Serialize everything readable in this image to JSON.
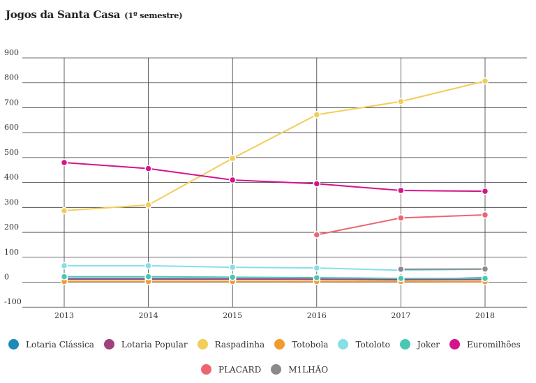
{
  "header": {
    "title": "Jogos da Santa Casa",
    "subtitle": "(1º semestre)"
  },
  "chart_data": {
    "type": "line",
    "title": "Jogos da Santa Casa",
    "subtitle": "(1º semestre)",
    "xlabel": "",
    "ylabel": "",
    "x": [
      "2013",
      "2014",
      "2015",
      "2016",
      "2017",
      "2018"
    ],
    "yticks": [
      "900",
      "800",
      "700",
      "600",
      "500",
      "400",
      "300",
      "200",
      "100",
      "0",
      "-100"
    ],
    "ylim": [
      -100,
      900
    ],
    "grid": true,
    "legend_position": "bottom",
    "series": [
      {
        "name": "Lotaria Clássica",
        "color": "#1a8bb5",
        "values": [
          12,
          12,
          12,
          12,
          10,
          18
        ]
      },
      {
        "name": "Lotaria Popular",
        "color": "#a0407c",
        "values": [
          14,
          14,
          13,
          12,
          10,
          10
        ]
      },
      {
        "name": "Raspadinha",
        "color": "#f2cd58",
        "values": [
          287,
          310,
          497,
          672,
          725,
          807
        ]
      },
      {
        "name": "Totobola",
        "color": "#f39a2a",
        "values": [
          3,
          3,
          3,
          3,
          3,
          2
        ]
      },
      {
        "name": "Totoloto",
        "color": "#86dfe6",
        "values": [
          66,
          66,
          60,
          57,
          48,
          52
        ]
      },
      {
        "name": "Joker",
        "color": "#48c7b5",
        "values": [
          22,
          22,
          20,
          18,
          15,
          15
        ]
      },
      {
        "name": "Euromilhões",
        "color": "#d4148d",
        "values": [
          480,
          456,
          410,
          395,
          368,
          365
        ]
      },
      {
        "name": "PLACARD",
        "color": "#ec6570",
        "values": [
          null,
          null,
          null,
          190,
          258,
          270
        ]
      },
      {
        "name": "M1LHÃO",
        "color": "#8a8a8a",
        "values": [
          null,
          null,
          null,
          null,
          52,
          53
        ]
      }
    ]
  },
  "legend": {
    "row1": [
      "Lotaria Clássica",
      "Lotaria Popular",
      "Raspadinha",
      "Totobola",
      "Totoloto",
      "Joker",
      "Euromilhões"
    ],
    "row2": [
      "PLACARD",
      "M1LHÃO"
    ]
  }
}
